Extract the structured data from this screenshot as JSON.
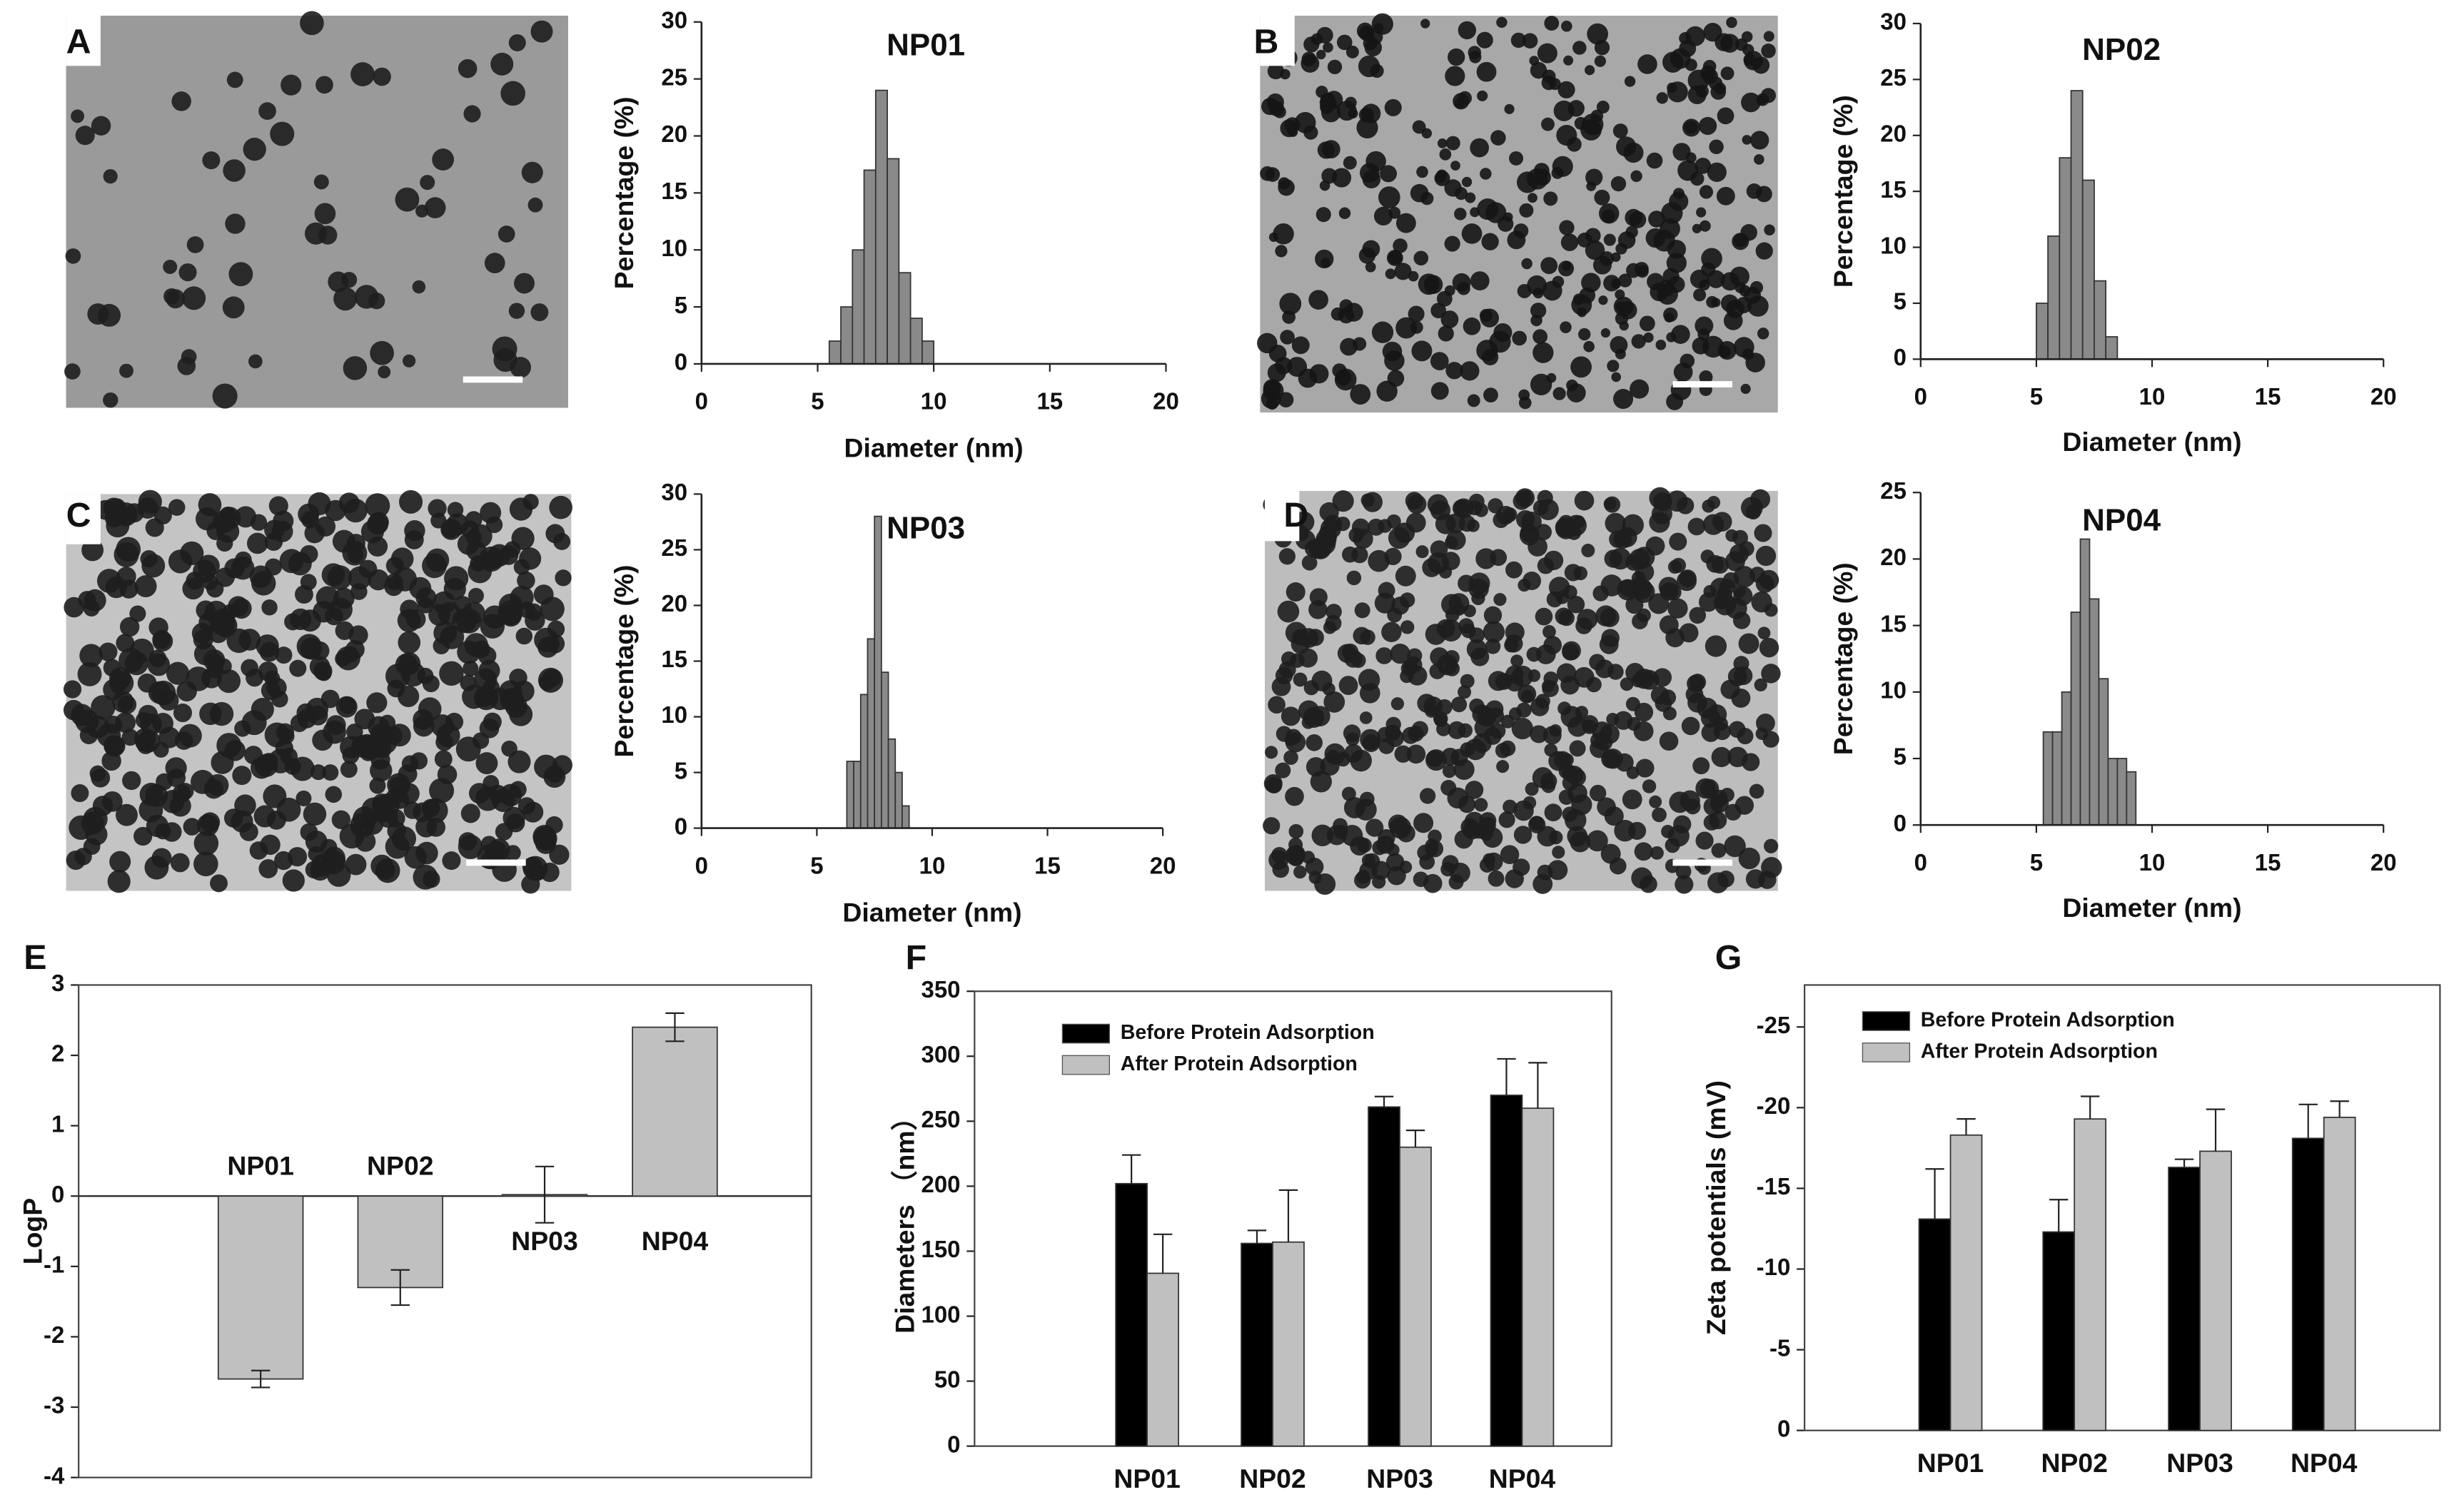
{
  "chart_data": [
    {
      "type": "histogram",
      "panel": "A",
      "title": "NP01",
      "xlabel": "Diameter (nm)",
      "ylabel": "Percentage (%)",
      "color": "#8a8a8a",
      "bins": [
        5.5,
        6,
        6.5,
        7,
        7.5,
        8,
        8.5,
        9,
        9.5,
        10
      ],
      "values": [
        2,
        5,
        10,
        17,
        24,
        18,
        8,
        4,
        2
      ],
      "xlim": [
        0,
        20
      ],
      "xticks": [
        0,
        5,
        10,
        15,
        20
      ],
      "ylim": [
        0,
        30
      ],
      "yticks": [
        0,
        5,
        10,
        15,
        20,
        25,
        30
      ]
    },
    {
      "type": "histogram",
      "panel": "B",
      "title": "NP02",
      "xlabel": "Diameter (nm)",
      "ylabel": "Percentage (%)",
      "color": "#8a8a8a",
      "bins": [
        5,
        5.5,
        6,
        6.5,
        7,
        7.5,
        8,
        8.5
      ],
      "values": [
        5,
        11,
        18,
        24,
        16,
        7,
        2
      ],
      "xlim": [
        0,
        20
      ],
      "xticks": [
        0,
        5,
        10,
        15,
        20
      ],
      "ylim": [
        0,
        30
      ],
      "yticks": [
        0,
        5,
        10,
        15,
        20,
        25,
        30
      ]
    },
    {
      "type": "histogram",
      "panel": "C",
      "title": "NP03",
      "xlabel": "Diameter (nm)",
      "ylabel": "Percentage (%)",
      "color": "#8a8a8a",
      "bins": [
        6.3,
        6.6,
        6.9,
        7.2,
        7.5,
        7.8,
        8.1,
        8.4,
        8.7,
        9.0
      ],
      "values": [
        6,
        6,
        12,
        17,
        28,
        14,
        8,
        5,
        2
      ],
      "xlim": [
        0,
        20
      ],
      "xticks": [
        0,
        5,
        10,
        15,
        20
      ],
      "ylim": [
        0,
        30
      ],
      "yticks": [
        0,
        5,
        10,
        15,
        20,
        25,
        30
      ]
    },
    {
      "type": "histogram",
      "panel": "D",
      "title": "NP04",
      "xlabel": "Diameter (nm)",
      "ylabel": "Percentage (%)",
      "color": "#8a8a8a",
      "bins": [
        5.3,
        5.7,
        6.1,
        6.5,
        6.9,
        7.3,
        7.7,
        8.1,
        8.5,
        8.9,
        9.3
      ],
      "values": [
        7,
        7,
        10,
        16,
        21.5,
        17,
        11,
        5,
        5,
        4
      ],
      "xlim": [
        0,
        20
      ],
      "xticks": [
        0,
        5,
        10,
        15,
        20
      ],
      "ylim": [
        0,
        25
      ],
      "yticks": [
        0,
        5,
        10,
        15,
        20,
        25
      ]
    },
    {
      "type": "bar",
      "panel": "E",
      "ylabel": "LogP",
      "categories": [
        "NP01",
        "NP02",
        "NP03",
        "NP04"
      ],
      "series": [
        {
          "color": "#c0c0c0",
          "values": [
            -2.6,
            -1.3,
            0.02,
            2.4
          ],
          "errors": [
            0.12,
            0.25,
            0.4,
            0.2
          ]
        }
      ],
      "ylim": [
        -4,
        3
      ],
      "yticks": [
        -4,
        -3,
        -2,
        -1,
        0,
        1,
        2,
        3
      ]
    },
    {
      "type": "bar",
      "panel": "F",
      "ylabel": "Diameters （nm）",
      "categories": [
        "NP01",
        "NP02",
        "NP03",
        "NP04"
      ],
      "series": [
        {
          "name": "Before Protein Adsorption",
          "color": "#000000",
          "values": [
            202,
            156,
            261,
            270
          ],
          "errors": [
            22,
            10,
            8,
            28
          ]
        },
        {
          "name": "After Protein Adsorption",
          "color": "#c0c0c0",
          "values": [
            133,
            157,
            230,
            260
          ],
          "errors": [
            30,
            40,
            13,
            35
          ]
        }
      ],
      "ylim": [
        0,
        350
      ],
      "yticks": [
        0,
        50,
        100,
        150,
        200,
        250,
        300,
        350
      ]
    },
    {
      "type": "bar",
      "panel": "G",
      "ylabel": "Zeta potentials (mV)",
      "categories": [
        "NP01",
        "NP02",
        "NP03",
        "NP04"
      ],
      "series": [
        {
          "name": "Before Protein Adsorption",
          "color": "#000000",
          "values": [
            -13.1,
            -12.3,
            -16.3,
            -18.1
          ],
          "errors": [
            3.1,
            2,
            0.5,
            2.1
          ]
        },
        {
          "name": "After Protein Adsorption",
          "color": "#c0c0c0",
          "values": [
            -18.3,
            -19.3,
            -17.3,
            -19.4
          ],
          "errors": [
            1,
            1.4,
            2.6,
            1
          ]
        }
      ],
      "ylim": [
        0,
        -27.6
      ],
      "yticks": [
        0,
        -5,
        -10,
        -15,
        -20,
        -25
      ]
    }
  ]
}
